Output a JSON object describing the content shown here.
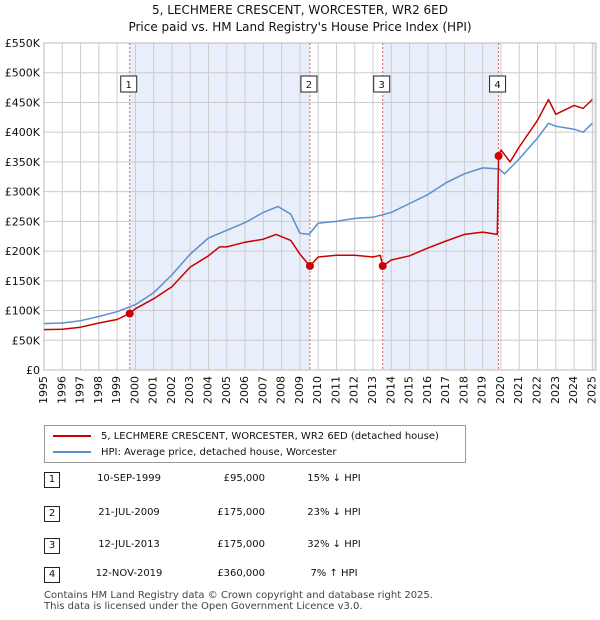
{
  "chart_data": {
    "type": "line",
    "title": "5, LECHMERE CRESCENT, WORCESTER, WR2 6ED",
    "subtitle": "Price paid vs. HM Land Registry's House Price Index (HPI)",
    "xlim": [
      1995,
      2025.2
    ],
    "ylim": [
      0,
      550000
    ],
    "x_ticks": [
      1995,
      1996,
      1997,
      1998,
      1999,
      2000,
      2001,
      2002,
      2003,
      2004,
      2005,
      2006,
      2007,
      2008,
      2009,
      2010,
      2011,
      2012,
      2013,
      2014,
      2015,
      2016,
      2017,
      2018,
      2019,
      2020,
      2021,
      2022,
      2023,
      2024,
      2025
    ],
    "y_ticks": [
      {
        "value": 0,
        "label": "£0"
      },
      {
        "value": 50000,
        "label": "£50K"
      },
      {
        "value": 100000,
        "label": "£100K"
      },
      {
        "value": 150000,
        "label": "£150K"
      },
      {
        "value": 200000,
        "label": "£200K"
      },
      {
        "value": 250000,
        "label": "£250K"
      },
      {
        "value": 300000,
        "label": "£300K"
      },
      {
        "value": 350000,
        "label": "£350K"
      },
      {
        "value": 400000,
        "label": "£400K"
      },
      {
        "value": 450000,
        "label": "£450K"
      },
      {
        "value": 500000,
        "label": "£500K"
      },
      {
        "value": 550000,
        "label": "£550K"
      }
    ],
    "grid": true,
    "shaded_periods": [
      [
        1999.69,
        2009.55
      ],
      [
        2013.53,
        2019.87
      ]
    ],
    "series": [
      {
        "name": "5, LECHMERE CRESCENT, WORCESTER, WR2 6ED (detached house)",
        "color": "#cc0000",
        "points": [
          [
            1995,
            68000
          ],
          [
            1996,
            68500
          ],
          [
            1997,
            72000
          ],
          [
            1998,
            79000
          ],
          [
            1999,
            85000
          ],
          [
            1999.69,
            95000
          ],
          [
            2000,
            103000
          ],
          [
            2001,
            120000
          ],
          [
            2002,
            140000
          ],
          [
            2003,
            173000
          ],
          [
            2004,
            192000
          ],
          [
            2004.6,
            207000
          ],
          [
            2005,
            207000
          ],
          [
            2006,
            215000
          ],
          [
            2007,
            220000
          ],
          [
            2007.7,
            228000
          ],
          [
            2008.5,
            218000
          ],
          [
            2009,
            195000
          ],
          [
            2009.55,
            175000
          ],
          [
            2010,
            190000
          ],
          [
            2011,
            193000
          ],
          [
            2012,
            193000
          ],
          [
            2013,
            190000
          ],
          [
            2013.4,
            193000
          ],
          [
            2013.53,
            175000
          ],
          [
            2014,
            185000
          ],
          [
            2015,
            192000
          ],
          [
            2016,
            205000
          ],
          [
            2017,
            217000
          ],
          [
            2018,
            228000
          ],
          [
            2019,
            232000
          ],
          [
            2019.8,
            228000
          ],
          [
            2019.87,
            360000
          ],
          [
            2020,
            370000
          ],
          [
            2020.5,
            350000
          ],
          [
            2021,
            375000
          ],
          [
            2022,
            420000
          ],
          [
            2022.6,
            455000
          ],
          [
            2023,
            430000
          ],
          [
            2024,
            445000
          ],
          [
            2024.5,
            440000
          ],
          [
            2025,
            455000
          ]
        ]
      },
      {
        "name": "HPI: Average price, detached house, Worcester",
        "color": "#5b8fd0",
        "points": [
          [
            1995,
            78000
          ],
          [
            1996,
            79000
          ],
          [
            1997,
            83000
          ],
          [
            1998,
            90000
          ],
          [
            1999,
            98000
          ],
          [
            2000,
            110000
          ],
          [
            2001,
            130000
          ],
          [
            2002,
            160000
          ],
          [
            2003,
            195000
          ],
          [
            2004,
            222000
          ],
          [
            2005,
            235000
          ],
          [
            2006,
            248000
          ],
          [
            2007,
            265000
          ],
          [
            2007.8,
            275000
          ],
          [
            2008.5,
            262000
          ],
          [
            2009,
            230000
          ],
          [
            2009.5,
            228000
          ],
          [
            2010,
            247000
          ],
          [
            2011,
            250000
          ],
          [
            2012,
            255000
          ],
          [
            2013,
            257000
          ],
          [
            2014,
            265000
          ],
          [
            2015,
            280000
          ],
          [
            2016,
            295000
          ],
          [
            2017,
            315000
          ],
          [
            2018,
            330000
          ],
          [
            2019,
            340000
          ],
          [
            2019.9,
            338000
          ],
          [
            2020.2,
            330000
          ],
          [
            2021,
            355000
          ],
          [
            2022,
            390000
          ],
          [
            2022.6,
            415000
          ],
          [
            2023,
            410000
          ],
          [
            2024,
            405000
          ],
          [
            2024.5,
            400000
          ],
          [
            2025,
            415000
          ]
        ]
      }
    ],
    "transactions": [
      {
        "num": "1",
        "date": "10-SEP-1999",
        "year": 1999.69,
        "price_value": 95000,
        "price": "£95,000",
        "hpi": "15% ↓ HPI"
      },
      {
        "num": "2",
        "date": "21-JUL-2009",
        "year": 2009.55,
        "price_value": 175000,
        "price": "£175,000",
        "hpi": "23% ↓ HPI"
      },
      {
        "num": "3",
        "date": "12-JUL-2013",
        "year": 2013.53,
        "price_value": 175000,
        "price": "£175,000",
        "hpi": "32% ↓ HPI"
      },
      {
        "num": "4",
        "date": "12-NOV-2019",
        "year": 2019.87,
        "price_value": 360000,
        "price": "£360,000",
        "hpi": "7% ↑ HPI"
      }
    ]
  },
  "legend": {
    "property_label": "5, LECHMERE CRESCENT, WORCESTER, WR2 6ED (detached house)",
    "hpi_label": "HPI: Average price, detached house, Worcester"
  },
  "footer": {
    "line1": "Contains HM Land Registry data © Crown copyright and database right 2025.",
    "line2": "This data is licensed under the Open Government Licence v3.0."
  },
  "colors": {
    "property": "#cc0000",
    "hpi": "#5b8fd0",
    "shade": "#e8eefa",
    "grid": "#cccccc"
  }
}
